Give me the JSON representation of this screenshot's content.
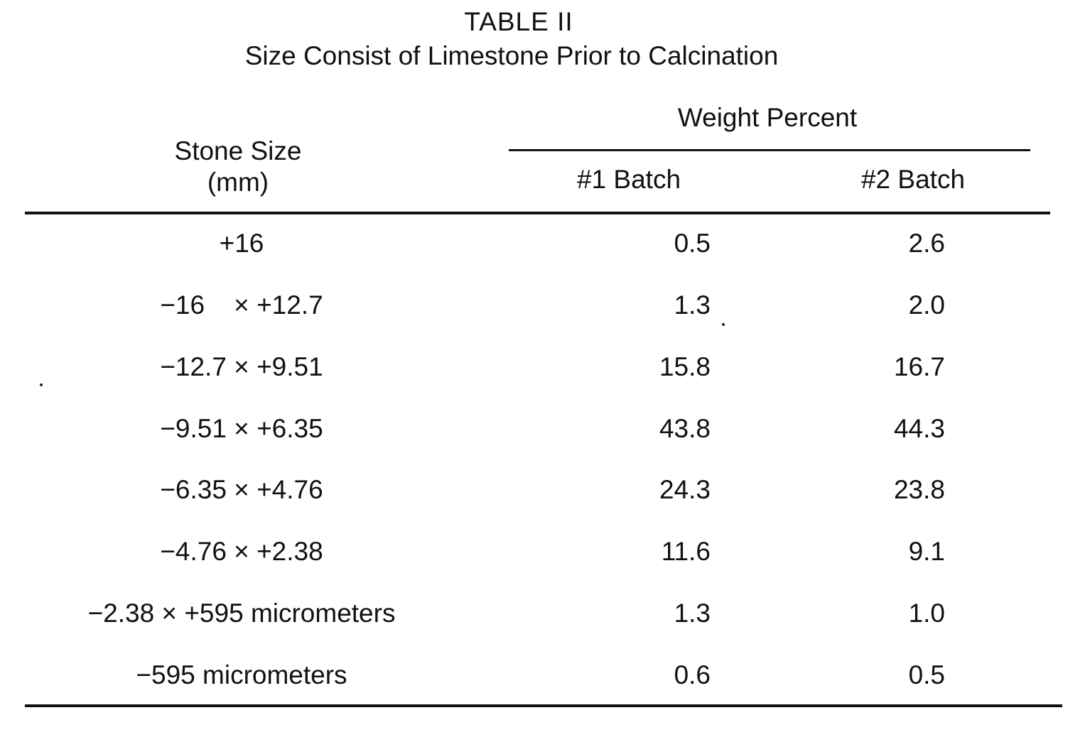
{
  "title": "TABLE II",
  "subtitle": "Size Consist of Limestone Prior to Calcination",
  "headers": {
    "stone_size_line1": "Stone Size",
    "stone_size_line2": "(mm)",
    "weight_percent": "Weight Percent",
    "batch1": "#1 Batch",
    "batch2": "#2 Batch"
  },
  "rows": [
    {
      "size": "+16",
      "batch1": "0.5",
      "batch2": "2.6"
    },
    {
      "size": "−16    × +12.7",
      "batch1": "1.3",
      "batch2": "2.0"
    },
    {
      "size": "−12.7 × +9.51",
      "batch1": "15.8",
      "batch2": "16.7"
    },
    {
      "size": "−9.51 × +6.35",
      "batch1": "43.8",
      "batch2": "44.3"
    },
    {
      "size": "−6.35 × +4.76",
      "batch1": "24.3",
      "batch2": "23.8"
    },
    {
      "size": "−4.76 × +2.38",
      "batch1": "11.6",
      "batch2": "9.1"
    },
    {
      "size": "−2.38 × +595 micrometers",
      "batch1": "1.3",
      "batch2": "1.0"
    },
    {
      "size": "−595 micrometers",
      "batch1": "0.6",
      "batch2": "0.5"
    }
  ]
}
